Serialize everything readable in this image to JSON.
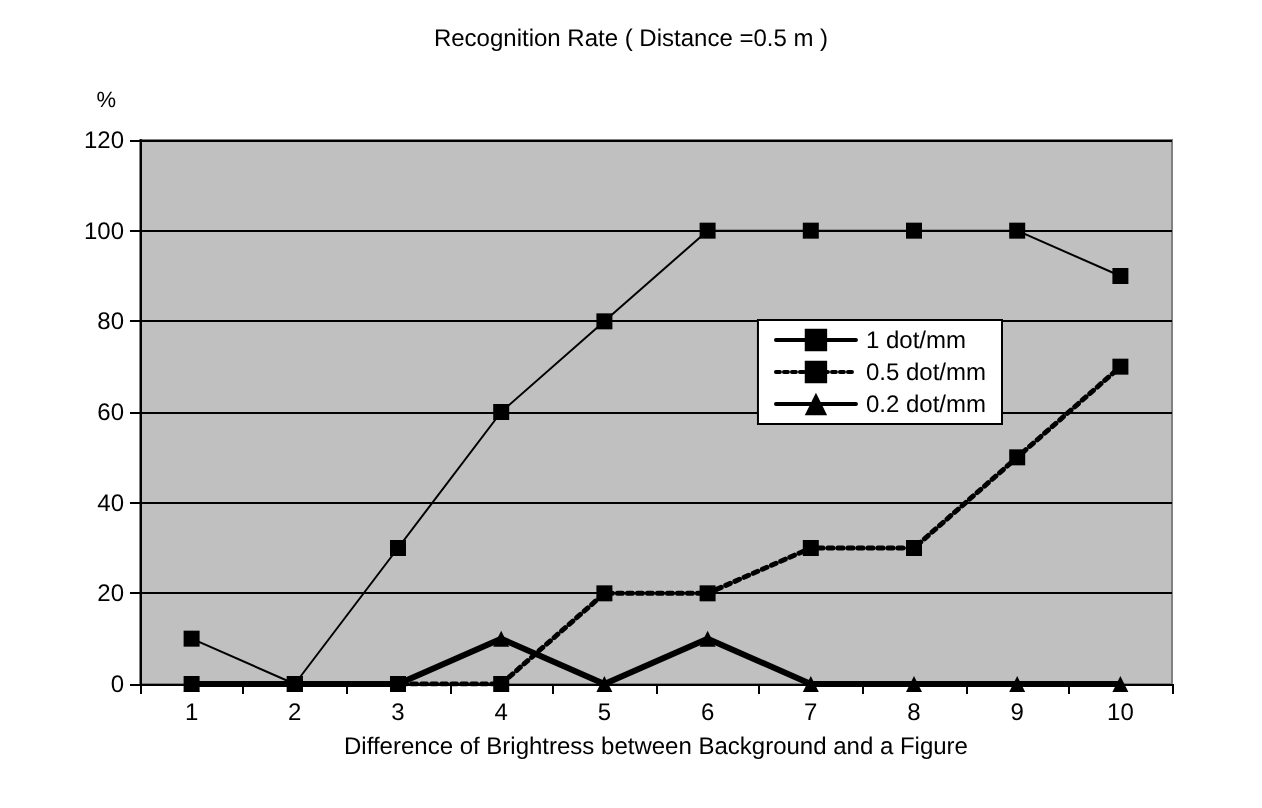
{
  "chart_data": {
    "type": "line",
    "title": "Recognition Rate ( Distance =0.5 m )",
    "ylabel": "%",
    "xlabel": "Difference of Brightress between Background and a Figure",
    "categories": [
      "1",
      "2",
      "3",
      "4",
      "5",
      "6",
      "7",
      "8",
      "9",
      "10"
    ],
    "series": [
      {
        "name": "1 dot/mm",
        "color": "#000000",
        "marker": "square",
        "line_style": "solid",
        "values": [
          10,
          0,
          30,
          60,
          80,
          100,
          100,
          100,
          100,
          90
        ]
      },
      {
        "name": "0.5 dot/mm",
        "color": "#000000",
        "marker": "square",
        "line_style": "dotted",
        "values": [
          0,
          0,
          0,
          0,
          20,
          20,
          30,
          30,
          50,
          70
        ]
      },
      {
        "name": "0.2 dot/mm",
        "color": "#000000",
        "marker": "triangle",
        "line_style": "solid",
        "values": [
          0,
          0,
          0,
          10,
          0,
          10,
          0,
          0,
          0,
          0
        ]
      }
    ],
    "ylim": [
      0,
      120
    ],
    "yticks": [
      0,
      20,
      40,
      60,
      80,
      100,
      120
    ],
    "grid": "y",
    "legend": "top right"
  }
}
